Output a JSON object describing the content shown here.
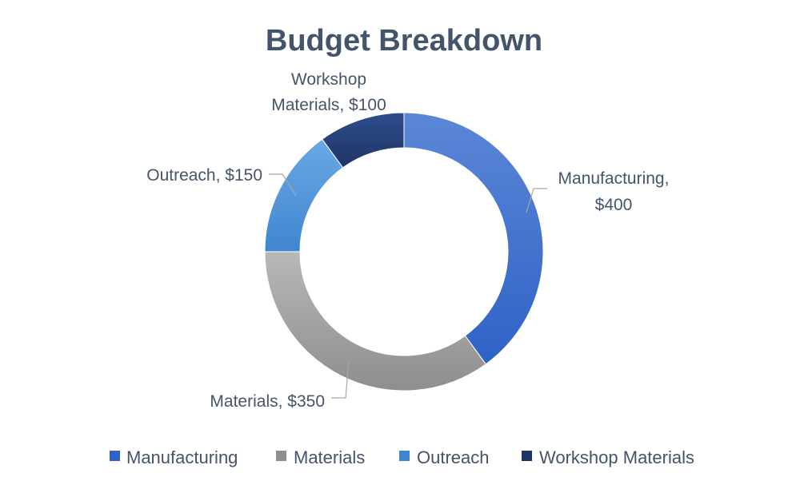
{
  "chart_data": {
    "type": "pie",
    "variant": "doughnut",
    "title": "Budget Breakdown",
    "categories": [
      "Manufacturing",
      "Materials",
      "Outreach",
      "Workshop Materials"
    ],
    "values": [
      400,
      350,
      150,
      100
    ],
    "data_labels": [
      [
        "Manufacturing,",
        "$400"
      ],
      [
        "Materials, $350"
      ],
      [
        "Outreach, $150"
      ],
      [
        "Workshop",
        "Materials, $100"
      ]
    ],
    "colors": [
      [
        "#5b87d6",
        "#2f62c6"
      ],
      [
        "#b8b8b8",
        "#8e8e8e"
      ],
      [
        "#6aa8e4",
        "#3f86d0"
      ],
      [
        "#2f4d8c",
        "#1e3466"
      ]
    ],
    "legend": {
      "position": "bottom",
      "entries": [
        "Manufacturing",
        "Materials",
        "Outreach",
        "Workshop Materials"
      ]
    }
  }
}
